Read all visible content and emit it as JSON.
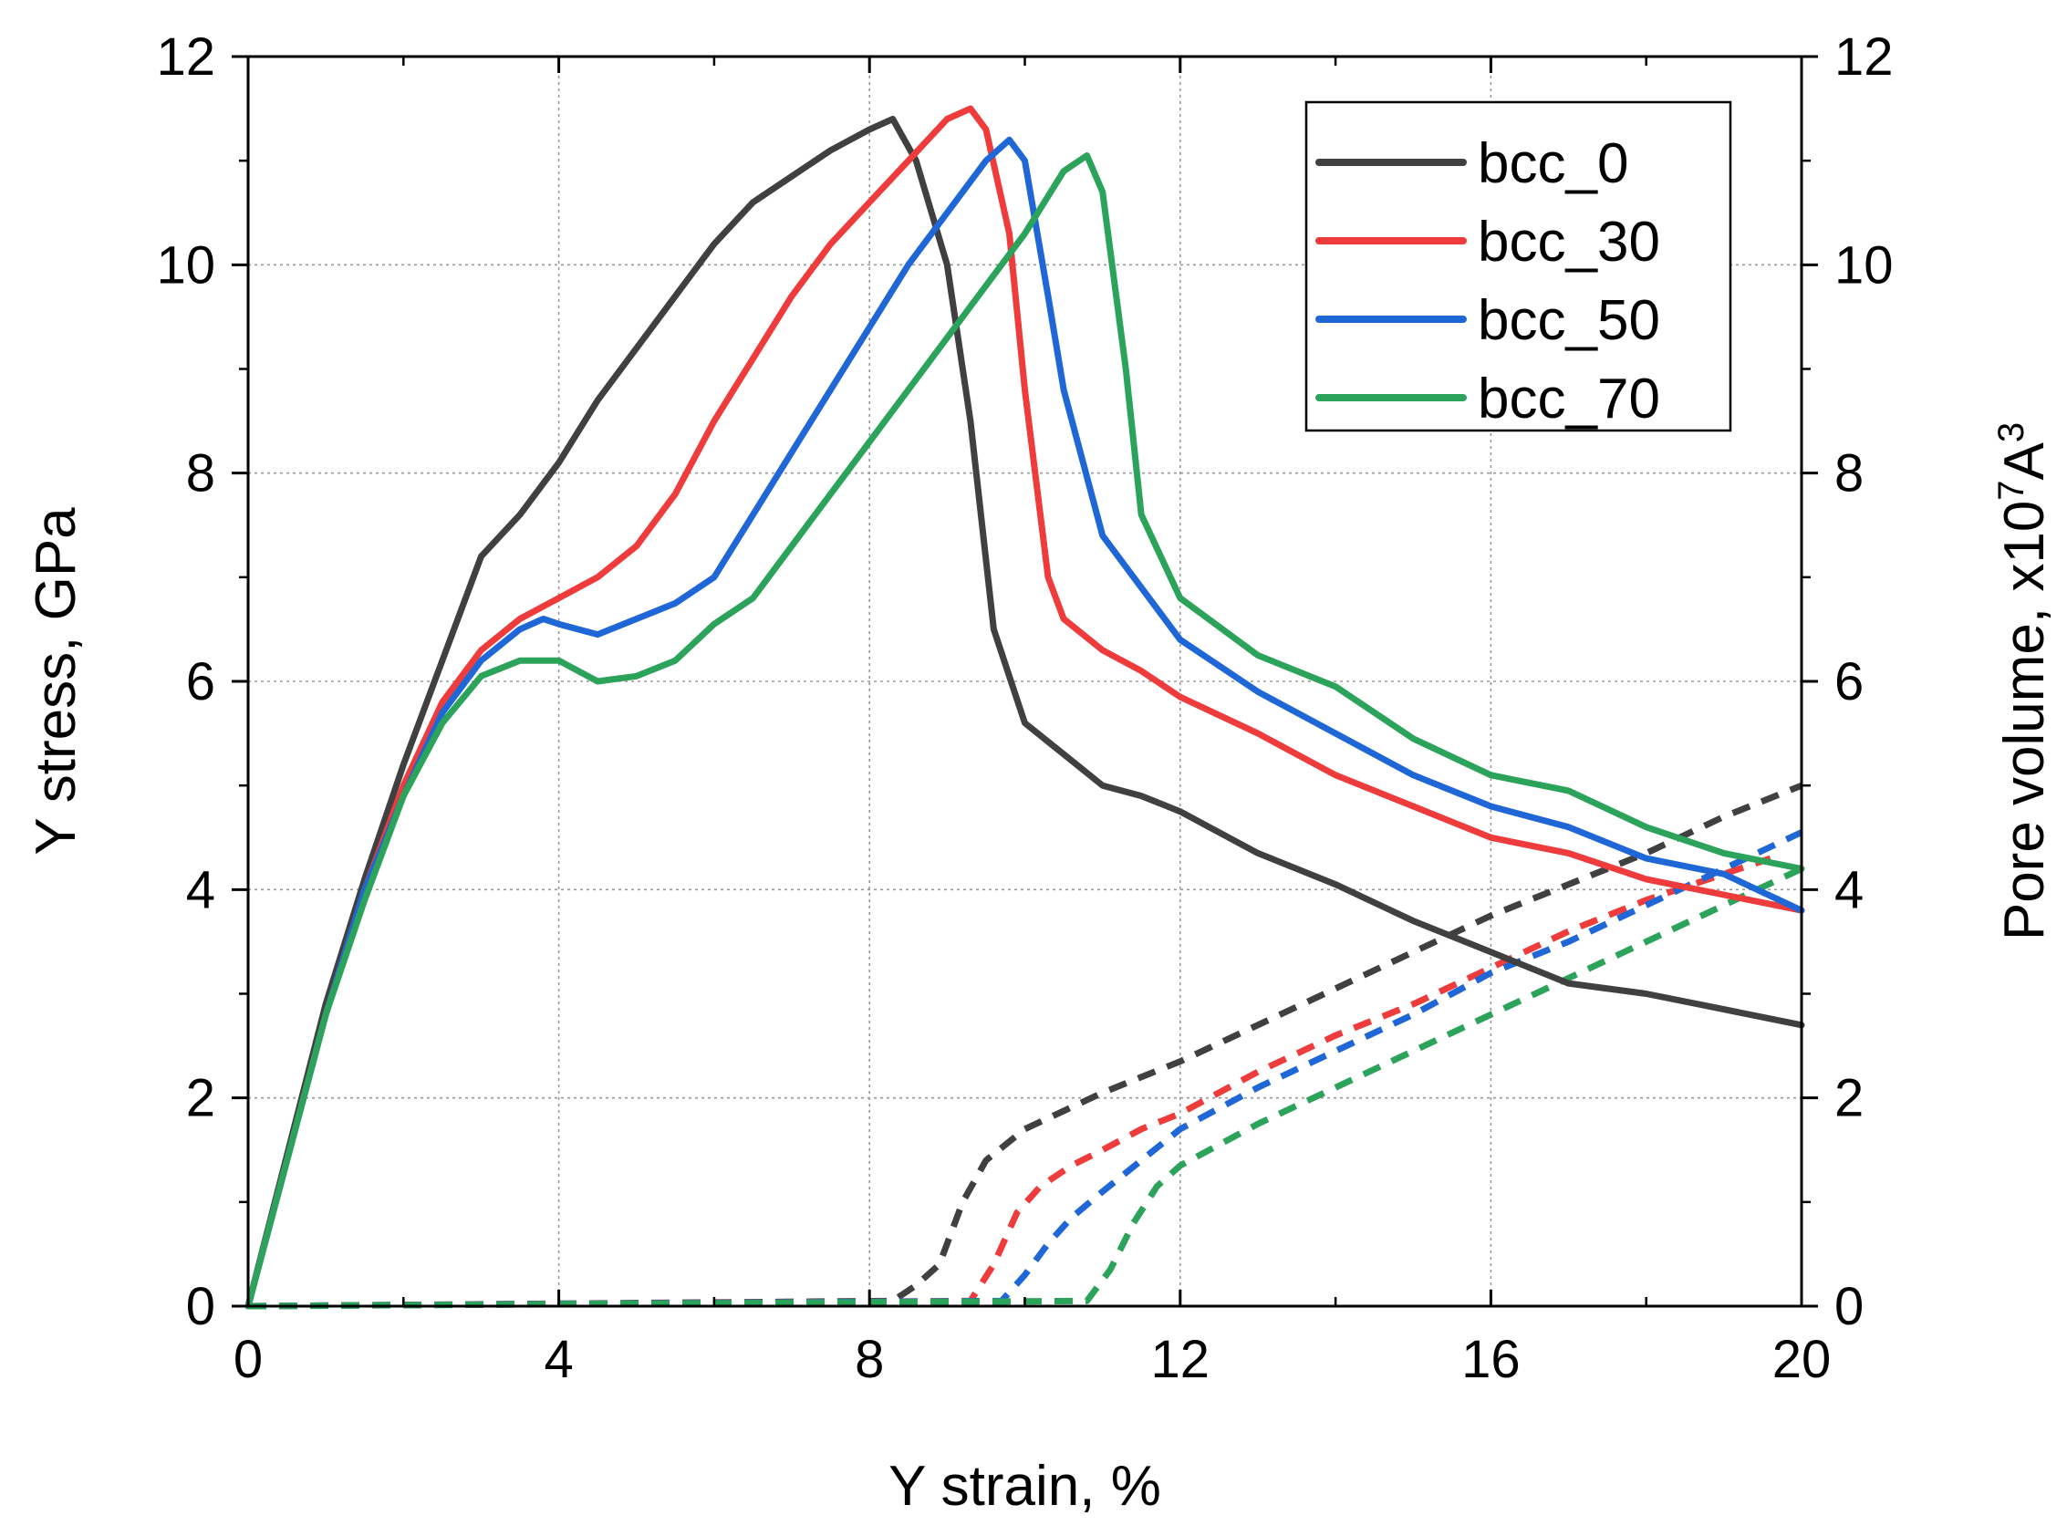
{
  "chart_data": {
    "type": "line",
    "title": "",
    "xlabel": "Y strain, %",
    "ylabel": "Y stress, GPa",
    "y2label": {
      "text": "Pore volume, x10",
      "sup1": "7",
      "mid": "A",
      "sup2": "3"
    },
    "xlim": [
      0,
      20
    ],
    "ylim": [
      0,
      12
    ],
    "y2lim": [
      0,
      12
    ],
    "xticks": [
      "0",
      "4",
      "8",
      "12",
      "16",
      "20"
    ],
    "yticks": [
      "0",
      "2",
      "4",
      "6",
      "8",
      "10",
      "12"
    ],
    "y2ticks": [
      "0",
      "2",
      "4",
      "6",
      "8",
      "10",
      "12"
    ],
    "grid": true,
    "legend_position": "top-right",
    "colors": {
      "bcc_0": "#404040",
      "bcc_30": "#ee3b3b",
      "bcc_50": "#1f67d6",
      "bcc_70": "#2ca35a"
    },
    "legend": [
      "bcc_0",
      "bcc_30",
      "bcc_50",
      "bcc_70"
    ],
    "stress_series": [
      {
        "name": "bcc_0",
        "axis": "left",
        "style": "solid",
        "x": [
          0,
          0.5,
          1,
          1.5,
          2,
          2.5,
          3,
          3.5,
          4,
          4.5,
          5,
          5.5,
          6,
          6.5,
          7,
          7.5,
          8,
          8.3,
          8.6,
          9,
          9.3,
          9.6,
          10,
          10.5,
          11,
          11.5,
          12,
          13,
          14,
          15,
          16,
          17,
          18,
          19,
          20
        ],
        "y": [
          0,
          1.45,
          2.9,
          4.1,
          5.2,
          6.2,
          7.2,
          7.6,
          8.1,
          8.7,
          9.2,
          9.7,
          10.2,
          10.6,
          10.85,
          11.1,
          11.3,
          11.4,
          11.0,
          10.0,
          8.5,
          6.5,
          5.6,
          5.3,
          5.0,
          4.9,
          4.75,
          4.35,
          4.05,
          3.7,
          3.4,
          3.1,
          3.0,
          2.85,
          2.7
        ]
      },
      {
        "name": "bcc_30",
        "axis": "left",
        "style": "solid",
        "x": [
          0,
          0.5,
          1,
          1.5,
          2,
          2.5,
          3,
          3.5,
          4,
          4.5,
          5,
          5.5,
          6,
          6.5,
          7,
          7.5,
          8,
          8.5,
          9,
          9.3,
          9.5,
          9.8,
          10,
          10.3,
          10.5,
          11,
          11.5,
          12,
          13,
          14,
          15,
          16,
          17,
          18,
          19,
          20
        ],
        "y": [
          0,
          1.4,
          2.8,
          4.0,
          5.0,
          5.8,
          6.3,
          6.6,
          6.8,
          7.0,
          7.3,
          7.8,
          8.5,
          9.1,
          9.7,
          10.2,
          10.6,
          11.0,
          11.4,
          11.5,
          11.3,
          10.3,
          8.8,
          7.0,
          6.6,
          6.3,
          6.1,
          5.85,
          5.5,
          5.1,
          4.8,
          4.5,
          4.35,
          4.1,
          3.95,
          3.8
        ]
      },
      {
        "name": "bcc_50",
        "axis": "left",
        "style": "solid",
        "x": [
          0,
          0.5,
          1,
          1.5,
          2,
          2.5,
          3,
          3.5,
          3.8,
          4,
          4.5,
          5,
          5.5,
          6,
          6.5,
          7,
          7.5,
          8,
          8.5,
          9,
          9.5,
          9.8,
          10,
          10.3,
          10.5,
          11,
          11.5,
          12,
          13,
          14,
          15,
          16,
          17,
          18,
          19,
          20
        ],
        "y": [
          0,
          1.4,
          2.8,
          4.0,
          4.9,
          5.7,
          6.2,
          6.5,
          6.6,
          6.55,
          6.45,
          6.6,
          6.75,
          7.0,
          7.6,
          8.2,
          8.8,
          9.4,
          10.0,
          10.5,
          11.0,
          11.2,
          11.0,
          9.7,
          8.8,
          7.4,
          6.9,
          6.4,
          5.9,
          5.5,
          5.1,
          4.8,
          4.6,
          4.3,
          4.15,
          3.8
        ]
      },
      {
        "name": "bcc_70",
        "axis": "left",
        "style": "solid",
        "x": [
          0,
          0.5,
          1,
          1.5,
          2,
          2.5,
          3,
          3.5,
          4,
          4.5,
          5,
          5.5,
          6,
          6.5,
          7,
          7.5,
          8,
          8.5,
          9,
          9.5,
          10,
          10.5,
          10.8,
          11,
          11.3,
          11.5,
          12,
          13,
          14,
          15,
          16,
          17,
          18,
          19,
          20
        ],
        "y": [
          0,
          1.4,
          2.8,
          3.9,
          4.9,
          5.6,
          6.05,
          6.2,
          6.2,
          6.0,
          6.05,
          6.2,
          6.55,
          6.8,
          7.3,
          7.8,
          8.3,
          8.8,
          9.3,
          9.8,
          10.3,
          10.9,
          11.05,
          10.7,
          9.0,
          7.6,
          6.8,
          6.25,
          5.95,
          5.45,
          5.1,
          4.95,
          4.6,
          4.35,
          4.2
        ]
      }
    ],
    "pore_series": [
      {
        "name": "bcc_0",
        "axis": "right",
        "style": "dashed",
        "x": [
          0,
          8.3,
          8.6,
          8.9,
          9.2,
          9.5,
          10,
          11,
          12,
          13,
          14,
          15,
          16,
          17,
          18,
          19,
          20
        ],
        "y": [
          0,
          0.05,
          0.2,
          0.4,
          1.0,
          1.4,
          1.7,
          2.05,
          2.35,
          2.7,
          3.05,
          3.4,
          3.75,
          4.05,
          4.35,
          4.7,
          5.0
        ]
      },
      {
        "name": "bcc_30",
        "axis": "right",
        "style": "dashed",
        "x": [
          0,
          9.3,
          9.6,
          9.9,
          10.2,
          10.6,
          11,
          11.5,
          12,
          13,
          14,
          15,
          16,
          17,
          18,
          19,
          19.6
        ],
        "y": [
          0,
          0.05,
          0.4,
          0.9,
          1.15,
          1.35,
          1.5,
          1.7,
          1.85,
          2.25,
          2.6,
          2.9,
          3.25,
          3.6,
          3.9,
          4.15,
          4.3
        ]
      },
      {
        "name": "bcc_50",
        "axis": "right",
        "style": "dashed",
        "x": [
          0,
          9.7,
          10,
          10.3,
          10.6,
          11,
          11.5,
          12,
          13,
          14,
          15,
          16,
          17,
          18,
          19,
          20
        ],
        "y": [
          0,
          0.05,
          0.3,
          0.6,
          0.85,
          1.1,
          1.4,
          1.7,
          2.1,
          2.45,
          2.8,
          3.2,
          3.5,
          3.85,
          4.2,
          4.55
        ]
      },
      {
        "name": "bcc_70",
        "axis": "right",
        "style": "dashed",
        "x": [
          0,
          10.8,
          11.1,
          11.4,
          11.7,
          12,
          13,
          14,
          15,
          16,
          17,
          18,
          19,
          20
        ],
        "y": [
          0,
          0.05,
          0.35,
          0.8,
          1.15,
          1.35,
          1.75,
          2.1,
          2.45,
          2.8,
          3.15,
          3.5,
          3.85,
          4.2
        ]
      }
    ]
  }
}
